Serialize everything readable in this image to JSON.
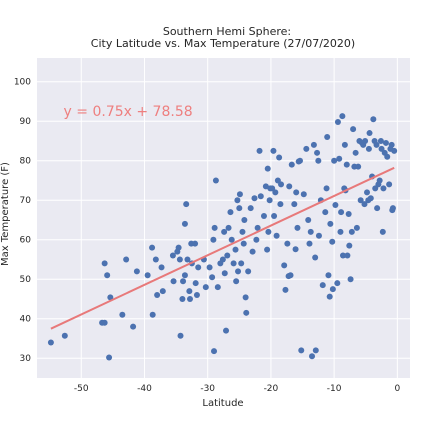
{
  "chart_data": {
    "type": "scatter",
    "title": "Southern Hemi Sphere:",
    "subtitle": "City Latitude vs. Max Temperature (27/07/2020)",
    "xlabel": "Latitude",
    "ylabel": "Max Temperature (F)",
    "xlim": [
      -57,
      2
    ],
    "ylim": [
      25,
      106
    ],
    "xticks": [
      -50,
      -40,
      -30,
      -20,
      -10,
      0
    ],
    "yticks": [
      30,
      40,
      50,
      60,
      70,
      80,
      90,
      100
    ],
    "grid": true,
    "colors": {
      "point": "#4c72b0",
      "regression": "#e8797a",
      "background": "#eaeaf2",
      "grid": "#ffffff",
      "text": "#262626"
    },
    "regression": {
      "equation": "y = 0.75x + 78.58",
      "slope": 0.75,
      "intercept": 78.58,
      "x_range": [
        -54.8,
        -0.5
      ]
    },
    "points": [
      [
        -54.8,
        34
      ],
      [
        -52.6,
        35.7
      ],
      [
        -46.7,
        39
      ],
      [
        -46.3,
        39
      ],
      [
        -46.3,
        54
      ],
      [
        -45.9,
        51
      ],
      [
        -45.6,
        30.2
      ],
      [
        -45.4,
        45.4
      ],
      [
        -43.5,
        41
      ],
      [
        -42.9,
        55
      ],
      [
        -41.8,
        38
      ],
      [
        -41.2,
        52
      ],
      [
        -39.5,
        51
      ],
      [
        -38.8,
        58
      ],
      [
        -38.7,
        41
      ],
      [
        -38.2,
        55
      ],
      [
        -38,
        46
      ],
      [
        -37.3,
        53
      ],
      [
        -37.1,
        47
      ],
      [
        -35.5,
        56
      ],
      [
        -35.4,
        49.5
      ],
      [
        -34.8,
        57
      ],
      [
        -34.6,
        58
      ],
      [
        -34.4,
        55
      ],
      [
        -34.3,
        35.7
      ],
      [
        -34,
        45
      ],
      [
        -33.9,
        49.5
      ],
      [
        -33.6,
        51
      ],
      [
        -33.6,
        64
      ],
      [
        -33.4,
        69
      ],
      [
        -33.2,
        55
      ],
      [
        -32.9,
        47
      ],
      [
        -32.8,
        45
      ],
      [
        -32.6,
        59
      ],
      [
        -32.5,
        54
      ],
      [
        -32,
        59
      ],
      [
        -31.9,
        49
      ],
      [
        -31.7,
        46
      ],
      [
        -31.5,
        53
      ],
      [
        -30.6,
        55
      ],
      [
        -30.3,
        48
      ],
      [
        -29.7,
        53
      ],
      [
        -29.3,
        50.5
      ],
      [
        -29.1,
        60
      ],
      [
        -29,
        31.8
      ],
      [
        -28.9,
        63
      ],
      [
        -28.7,
        75
      ],
      [
        -28.4,
        48
      ],
      [
        -28,
        54
      ],
      [
        -27.6,
        55
      ],
      [
        -27.4,
        62
      ],
      [
        -27.3,
        51.5
      ],
      [
        -27.1,
        37
      ],
      [
        -26.9,
        56
      ],
      [
        -26.7,
        63
      ],
      [
        -26.4,
        67
      ],
      [
        -26.2,
        60
      ],
      [
        -25.9,
        54
      ],
      [
        -25.6,
        57.5
      ],
      [
        -25.5,
        49.5
      ],
      [
        -25.3,
        70
      ],
      [
        -25.2,
        52
      ],
      [
        -25,
        68
      ],
      [
        -24.9,
        71.5
      ],
      [
        -24.7,
        54
      ],
      [
        -24.5,
        62
      ],
      [
        -24.3,
        59
      ],
      [
        -24.2,
        65
      ],
      [
        -24,
        45.4
      ],
      [
        -23.9,
        41.5
      ],
      [
        -23.6,
        52
      ],
      [
        -23.2,
        68
      ],
      [
        -22.9,
        57
      ],
      [
        -22.6,
        70.5
      ],
      [
        -22.3,
        60
      ],
      [
        -22.1,
        63
      ],
      [
        -21.8,
        82.5
      ],
      [
        -21.6,
        71
      ],
      [
        -21.1,
        66
      ],
      [
        -20.8,
        73.5
      ],
      [
        -20.6,
        57.5
      ],
      [
        -20.5,
        78
      ],
      [
        -20.4,
        62
      ],
      [
        -20.2,
        70
      ],
      [
        -20.1,
        73
      ],
      [
        -19.8,
        73
      ],
      [
        -19.6,
        82.5
      ],
      [
        -19.5,
        66
      ],
      [
        -19.3,
        72
      ],
      [
        -19.1,
        61
      ],
      [
        -18.9,
        75
      ],
      [
        -18.7,
        80.8
      ],
      [
        -18.5,
        69
      ],
      [
        -18.4,
        74
      ],
      [
        -17.9,
        53.5
      ],
      [
        -17.7,
        47.3
      ],
      [
        -17.4,
        59
      ],
      [
        -17.2,
        50.8
      ],
      [
        -17.1,
        73.5
      ],
      [
        -16.9,
        51
      ],
      [
        -16.7,
        79
      ],
      [
        -16.3,
        69
      ],
      [
        -16.1,
        57.6
      ],
      [
        -16,
        72
      ],
      [
        -15.8,
        63
      ],
      [
        -15.6,
        79.8
      ],
      [
        -15.4,
        80
      ],
      [
        -15.2,
        32
      ],
      [
        -14.8,
        71.5
      ],
      [
        -14.4,
        83
      ],
      [
        -14.1,
        65
      ],
      [
        -13.9,
        59
      ],
      [
        -13.7,
        62
      ],
      [
        -13.5,
        30.5
      ],
      [
        -13.2,
        84
      ],
      [
        -13,
        55.5
      ],
      [
        -12.9,
        32
      ],
      [
        -12.7,
        82
      ],
      [
        -12.5,
        80
      ],
      [
        -12.4,
        61
      ],
      [
        -12.1,
        70
      ],
      [
        -11.8,
        48.5
      ],
      [
        -11.4,
        67
      ],
      [
        -11.2,
        73
      ],
      [
        -11.1,
        86
      ],
      [
        -10.9,
        51
      ],
      [
        -10.7,
        45.6
      ],
      [
        -10.6,
        64
      ],
      [
        -10.3,
        59.5
      ],
      [
        -10.2,
        47.5
      ],
      [
        -10,
        80
      ],
      [
        -9.8,
        68.8
      ],
      [
        -9.5,
        49
      ],
      [
        -9.4,
        89.8
      ],
      [
        -9.2,
        80.5
      ],
      [
        -9,
        62
      ],
      [
        -8.9,
        67
      ],
      [
        -8.7,
        91.3
      ],
      [
        -8.6,
        56
      ],
      [
        -8.4,
        73
      ],
      [
        -8.3,
        84
      ],
      [
        -8.2,
        72.5
      ],
      [
        -8,
        79
      ],
      [
        -7.9,
        56
      ],
      [
        -7.7,
        66.5
      ],
      [
        -7.6,
        58.5
      ],
      [
        -7.4,
        50
      ],
      [
        -7.2,
        62
      ],
      [
        -7,
        88
      ],
      [
        -6.8,
        78.5
      ],
      [
        -6.6,
        82
      ],
      [
        -6.4,
        63
      ],
      [
        -6.2,
        78.5
      ],
      [
        -6,
        85
      ],
      [
        -5.8,
        70
      ],
      [
        -5.6,
        84.5
      ],
      [
        -5.4,
        84
      ],
      [
        -5.2,
        69
      ],
      [
        -5.1,
        85
      ],
      [
        -4.8,
        72
      ],
      [
        -4.6,
        70
      ],
      [
        -4.5,
        83
      ],
      [
        -4.4,
        87
      ],
      [
        -4.2,
        70.5
      ],
      [
        -4,
        76
      ],
      [
        -3.8,
        90.5
      ],
      [
        -3.6,
        85
      ],
      [
        -3.5,
        73
      ],
      [
        -3.3,
        84
      ],
      [
        -3.2,
        68
      ],
      [
        -3,
        74
      ],
      [
        -2.8,
        75
      ],
      [
        -2.6,
        85
      ],
      [
        -2.5,
        83
      ],
      [
        -2.3,
        62
      ],
      [
        -2.2,
        73
      ],
      [
        -2,
        82
      ],
      [
        -1.8,
        84.5
      ],
      [
        -1.6,
        81
      ],
      [
        -1.3,
        74
      ],
      [
        -1.1,
        83
      ],
      [
        -0.9,
        84
      ],
      [
        -0.8,
        67.5
      ],
      [
        -0.7,
        68
      ],
      [
        -0.5,
        82.5
      ]
    ]
  }
}
